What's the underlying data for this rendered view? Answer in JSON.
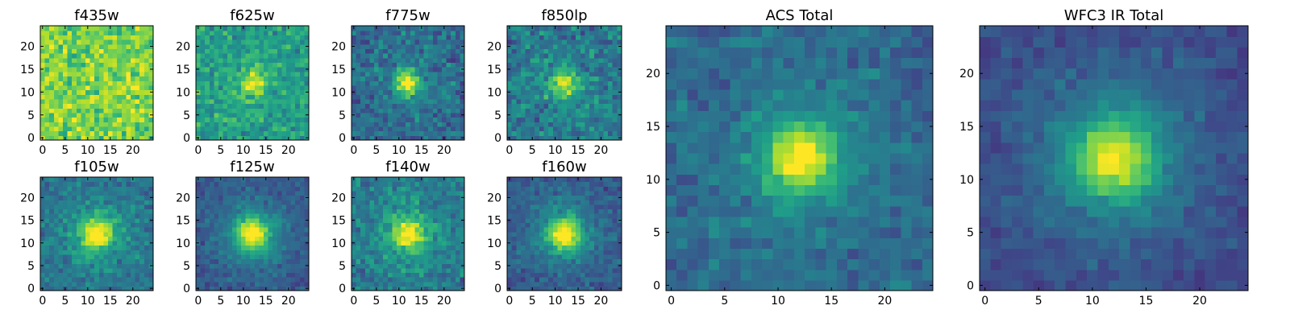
{
  "figure": {
    "colormap": "viridis",
    "colormap_stops": [
      "#440154",
      "#482878",
      "#3e4989",
      "#31688e",
      "#26828e",
      "#1f9e89",
      "#35b779",
      "#6ece58",
      "#b5de2b",
      "#fde725"
    ],
    "frame_color": "#000000"
  },
  "chart_data": [
    {
      "type": "heatmap",
      "title": "f435w",
      "grid_size": 25,
      "center": [
        12,
        12
      ],
      "xlim": [
        -0.5,
        24.5
      ],
      "ylim": [
        -0.5,
        24.5
      ],
      "xticks": [
        0,
        5,
        10,
        15,
        20
      ],
      "yticks": [
        0,
        5,
        10,
        15,
        20
      ],
      "peak": 0.05,
      "core_sigma": 2.0,
      "halo": 0.0,
      "halo_sigma": 5.0,
      "noise": 0.16,
      "background": 0.8
    },
    {
      "type": "heatmap",
      "title": "f625w",
      "grid_size": 25,
      "center": [
        12,
        12
      ],
      "xlim": [
        -0.5,
        24.5
      ],
      "ylim": [
        -0.5,
        24.5
      ],
      "xticks": [
        0,
        5,
        10,
        15,
        20
      ],
      "yticks": [
        0,
        5,
        10,
        15,
        20
      ],
      "peak": 0.4,
      "core_sigma": 1.8,
      "halo": 0.05,
      "halo_sigma": 5.0,
      "noise": 0.14,
      "background": 0.55
    },
    {
      "type": "heatmap",
      "title": "f775w",
      "grid_size": 25,
      "center": [
        12,
        12
      ],
      "xlim": [
        -0.5,
        24.5
      ],
      "ylim": [
        -0.5,
        24.5
      ],
      "xticks": [
        0,
        5,
        10,
        15,
        20
      ],
      "yticks": [
        0,
        5,
        10,
        15,
        20
      ],
      "peak": 0.62,
      "core_sigma": 1.8,
      "halo": 0.12,
      "halo_sigma": 5.5,
      "noise": 0.14,
      "background": 0.34
    },
    {
      "type": "heatmap",
      "title": "f850lp",
      "grid_size": 25,
      "center": [
        12,
        12
      ],
      "xlim": [
        -0.5,
        24.5
      ],
      "ylim": [
        -0.5,
        24.5
      ],
      "xticks": [
        0,
        5,
        10,
        15,
        20
      ],
      "yticks": [
        0,
        5,
        10,
        15,
        20
      ],
      "peak": 0.52,
      "core_sigma": 2.0,
      "halo": 0.1,
      "halo_sigma": 5.5,
      "noise": 0.15,
      "background": 0.4
    },
    {
      "type": "heatmap",
      "title": "f105w",
      "grid_size": 25,
      "center": [
        12,
        12
      ],
      "xlim": [
        -0.5,
        24.5
      ],
      "ylim": [
        -0.5,
        24.5
      ],
      "xticks": [
        0,
        5,
        10,
        15,
        20
      ],
      "yticks": [
        0,
        5,
        10,
        15,
        20
      ],
      "peak": 0.5,
      "core_sigma": 2.2,
      "halo": 0.22,
      "halo_sigma": 5.5,
      "noise": 0.11,
      "background": 0.38
    },
    {
      "type": "heatmap",
      "title": "f125w",
      "grid_size": 25,
      "center": [
        12,
        12
      ],
      "xlim": [
        -0.5,
        24.5
      ],
      "ylim": [
        -0.5,
        24.5
      ],
      "xticks": [
        0,
        5,
        10,
        15,
        20
      ],
      "yticks": [
        0,
        5,
        10,
        15,
        20
      ],
      "peak": 0.58,
      "core_sigma": 2.4,
      "halo": 0.25,
      "halo_sigma": 6.0,
      "noise": 0.08,
      "background": 0.26
    },
    {
      "type": "heatmap",
      "title": "f140w",
      "grid_size": 25,
      "center": [
        12,
        12
      ],
      "xlim": [
        -0.5,
        24.5
      ],
      "ylim": [
        -0.5,
        24.5
      ],
      "xticks": [
        0,
        5,
        10,
        15,
        20
      ],
      "yticks": [
        0,
        5,
        10,
        15,
        20
      ],
      "peak": 0.45,
      "core_sigma": 2.2,
      "halo": 0.22,
      "halo_sigma": 5.5,
      "noise": 0.12,
      "background": 0.4
    },
    {
      "type": "heatmap",
      "title": "f160w",
      "grid_size": 25,
      "center": [
        12,
        12
      ],
      "xlim": [
        -0.5,
        24.5
      ],
      "ylim": [
        -0.5,
        24.5
      ],
      "xticks": [
        0,
        5,
        10,
        15,
        20
      ],
      "yticks": [
        0,
        5,
        10,
        15,
        20
      ],
      "peak": 0.58,
      "core_sigma": 2.3,
      "halo": 0.25,
      "halo_sigma": 5.5,
      "noise": 0.09,
      "background": 0.28
    },
    {
      "type": "heatmap",
      "title": "ACS Total",
      "grid_size": 25,
      "center": [
        12,
        12
      ],
      "xlim": [
        -0.5,
        24.5
      ],
      "ylim": [
        -0.5,
        24.5
      ],
      "xticks": [
        0,
        5,
        10,
        15,
        20
      ],
      "yticks": [
        0,
        5,
        10,
        15,
        20
      ],
      "peak": 0.58,
      "core_sigma": 2.0,
      "halo": 0.18,
      "halo_sigma": 5.0,
      "noise": 0.09,
      "background": 0.34
    },
    {
      "type": "heatmap",
      "title": "WFC3 IR Total",
      "grid_size": 25,
      "center": [
        12,
        12
      ],
      "xlim": [
        -0.5,
        24.5
      ],
      "ylim": [
        -0.5,
        24.5
      ],
      "xticks": [
        0,
        5,
        10,
        15,
        20
      ],
      "yticks": [
        0,
        5,
        10,
        15,
        20
      ],
      "peak": 0.55,
      "core_sigma": 2.5,
      "halo": 0.25,
      "halo_sigma": 6.0,
      "noise": 0.06,
      "background": 0.22
    }
  ]
}
